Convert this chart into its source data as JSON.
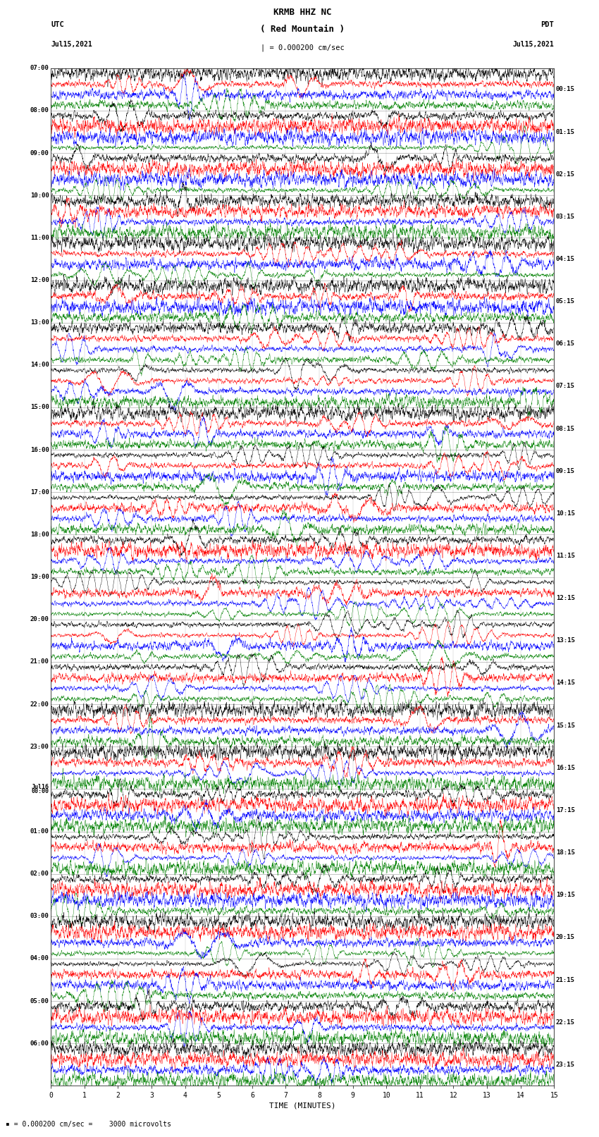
{
  "title_line1": "KRMB HHZ NC",
  "title_line2": "( Red Mountain )",
  "scale_text": "| = 0.000200 cm/sec",
  "bottom_scale_text": "= 0.000200 cm/sec =    3000 microvolts",
  "utc_label": "UTC",
  "utc_date": "Jul15,2021",
  "pdt_label": "PDT",
  "pdt_date": "Jul15,2021",
  "xlabel": "TIME (MINUTES)",
  "left_times_utc": [
    "07:00",
    "08:00",
    "09:00",
    "10:00",
    "11:00",
    "12:00",
    "13:00",
    "14:00",
    "15:00",
    "16:00",
    "17:00",
    "18:00",
    "19:00",
    "20:00",
    "21:00",
    "22:00",
    "23:00",
    "Jul16\n00:00",
    "01:00",
    "02:00",
    "03:00",
    "04:00",
    "05:00",
    "06:00"
  ],
  "right_times_pdt": [
    "00:15",
    "01:15",
    "02:15",
    "03:15",
    "04:15",
    "05:15",
    "06:15",
    "07:15",
    "08:15",
    "09:15",
    "10:15",
    "11:15",
    "12:15",
    "13:15",
    "14:15",
    "15:15",
    "16:15",
    "17:15",
    "18:15",
    "19:15",
    "20:15",
    "21:15",
    "22:15",
    "23:15"
  ],
  "num_rows": 24,
  "traces_per_row": 4,
  "colors": [
    "black",
    "red",
    "blue",
    "green"
  ],
  "xmin": 0,
  "xmax": 15,
  "fig_width": 8.5,
  "fig_height": 16.13,
  "dpi": 100,
  "bg_color": "white",
  "trace_amplitude": 0.08,
  "noise_seed": 42,
  "linewidth": 0.3,
  "ar_alpha": 0.7,
  "num_points": 3000
}
